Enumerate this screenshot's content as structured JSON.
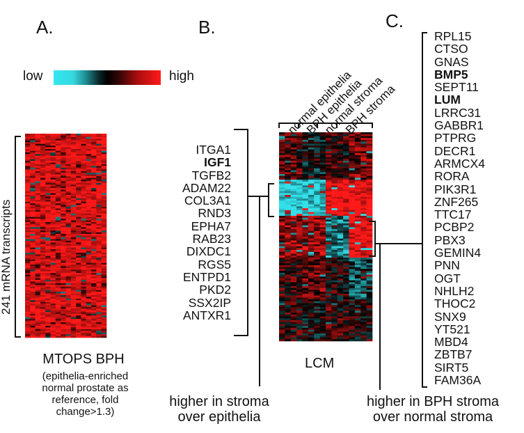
{
  "panels": {
    "a": {
      "letter": "A.",
      "legend": {
        "low": "low",
        "high": "high"
      },
      "rows_label": "241 mRNA transcripts",
      "title": "MTOPS BPH",
      "subtitle_lines": [
        "(epithelia-enriched",
        "normal prostate as",
        "reference, fold",
        "change>1.3)"
      ]
    },
    "b": {
      "letter": "B.",
      "columns": [
        "normal epithelia",
        "BPH epithelia",
        "normal stroma",
        "BPH stroma"
      ],
      "heatmap_label": "LCM",
      "genes": [
        {
          "name": "ITGA1",
          "bold": false
        },
        {
          "name": "IGF1",
          "bold": true
        },
        {
          "name": "TGFB2",
          "bold": false
        },
        {
          "name": "ADAM22",
          "bold": false
        },
        {
          "name": "COL3A1",
          "bold": false
        },
        {
          "name": "RND3",
          "bold": false
        },
        {
          "name": "EPHA7",
          "bold": false
        },
        {
          "name": "RAB23",
          "bold": false
        },
        {
          "name": "DIXDC1",
          "bold": false
        },
        {
          "name": "RGS5",
          "bold": false
        },
        {
          "name": "ENTPD1",
          "bold": false
        },
        {
          "name": "PKD2",
          "bold": false
        },
        {
          "name": "SSX2IP",
          "bold": false
        },
        {
          "name": "ANTXR1",
          "bold": false
        }
      ],
      "caption_lines": [
        "higher in stroma",
        "over epithelia"
      ]
    },
    "c": {
      "letter": "C.",
      "genes": [
        {
          "name": "RPL15",
          "bold": false
        },
        {
          "name": "CTSO",
          "bold": false
        },
        {
          "name": "GNAS",
          "bold": false
        },
        {
          "name": "BMP5",
          "bold": true
        },
        {
          "name": "SEPT11",
          "bold": false
        },
        {
          "name": "LUM",
          "bold": true
        },
        {
          "name": "LRRC31",
          "bold": false
        },
        {
          "name": "GABBR1",
          "bold": false
        },
        {
          "name": "PTPRG",
          "bold": false
        },
        {
          "name": "DECR1",
          "bold": false
        },
        {
          "name": "ARMCX4",
          "bold": false
        },
        {
          "name": "RORA",
          "bold": false
        },
        {
          "name": "PIK3R1",
          "bold": false
        },
        {
          "name": "ZNF265",
          "bold": false
        },
        {
          "name": "TTC17",
          "bold": false
        },
        {
          "name": "PCBP2",
          "bold": false
        },
        {
          "name": "PBX3",
          "bold": false
        },
        {
          "name": "GEMIN4",
          "bold": false
        },
        {
          "name": "PNN",
          "bold": false
        },
        {
          "name": "OGT",
          "bold": false
        },
        {
          "name": "NHLH2",
          "bold": false
        },
        {
          "name": "THOC2",
          "bold": false
        },
        {
          "name": "SNX9",
          "bold": false
        },
        {
          "name": "YT521",
          "bold": false
        },
        {
          "name": "MBD4",
          "bold": false
        },
        {
          "name": "ZBTB7",
          "bold": false
        },
        {
          "name": "SIRT5",
          "bold": false
        },
        {
          "name": "FAM36A",
          "bold": false
        }
      ],
      "caption_lines": [
        "higher in BPH stroma",
        "over normal stroma"
      ]
    }
  },
  "colors": {
    "low": "#33e0ea",
    "mid": "#000000",
    "high": "#ff1a1a"
  }
}
